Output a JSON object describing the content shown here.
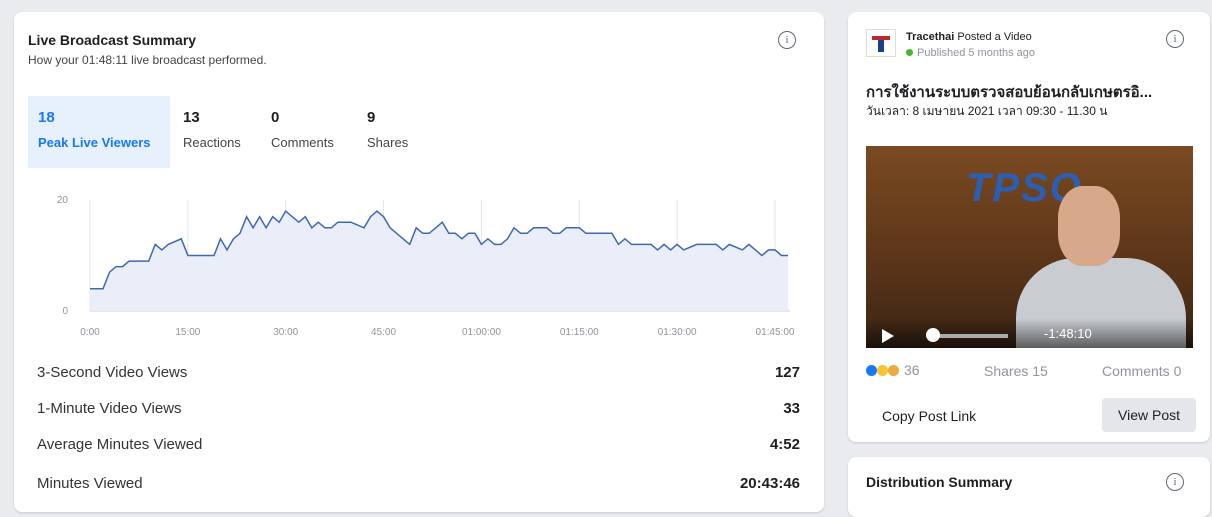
{
  "summary": {
    "title": "Live Broadcast Summary",
    "subtitle": "How your 01:48:11 live broadcast performed.",
    "tabs": [
      {
        "value": 18,
        "label": "Peak Live Viewers"
      },
      {
        "value": 13,
        "label": "Reactions"
      },
      {
        "value": 0,
        "label": "Comments"
      },
      {
        "value": 9,
        "label": "Shares"
      }
    ],
    "rows": [
      {
        "label": "3-Second Video Views",
        "value": 127
      },
      {
        "label": "1-Minute Video Views",
        "value": 33
      },
      {
        "label": "Average Minutes Viewed",
        "value": "4:52"
      },
      {
        "label": "Minutes Viewed",
        "value": "20:43:46"
      }
    ]
  },
  "chart_data": {
    "type": "line",
    "color": "#4267b2",
    "fill": "#e9eef8",
    "x": [
      0,
      2,
      3,
      4,
      5,
      6,
      9,
      10,
      11,
      12,
      14,
      15,
      19,
      20,
      21,
      22,
      23,
      24,
      25,
      26,
      27,
      28,
      29,
      30,
      31,
      32,
      33,
      34,
      35,
      36,
      37,
      38,
      40,
      42,
      43,
      44,
      45,
      46,
      47,
      48,
      49,
      50,
      51,
      52,
      53,
      54,
      55,
      56,
      57,
      58,
      59,
      60,
      61,
      62,
      63,
      64,
      65,
      66,
      67,
      68,
      70,
      71,
      72,
      73,
      75,
      76,
      80,
      81,
      82,
      83,
      86,
      87,
      88,
      89,
      90,
      91,
      93,
      96,
      97,
      98,
      100,
      101,
      102,
      103,
      104,
      105,
      106,
      107
    ],
    "values": [
      4,
      4,
      7,
      8,
      8,
      9,
      9,
      12,
      11,
      12,
      13,
      10,
      10,
      13,
      11,
      13,
      14,
      17,
      15,
      17,
      15,
      17,
      16,
      18,
      17,
      16,
      17,
      15,
      16,
      15,
      15,
      16,
      16,
      15,
      17,
      18,
      17,
      15,
      14,
      13,
      12,
      15,
      14,
      14,
      15,
      16,
      14,
      14,
      13,
      14,
      14,
      12,
      13,
      12,
      12,
      13,
      15,
      14,
      14,
      15,
      15,
      14,
      14,
      15,
      15,
      14,
      14,
      12,
      13,
      12,
      12,
      11,
      12,
      11,
      12,
      11,
      12,
      12,
      11,
      12,
      11,
      12,
      11,
      10,
      11,
      11,
      10,
      10
    ],
    "xlim": [
      0,
      107.3
    ],
    "ylim": [
      0,
      20
    ],
    "xticks": [
      {
        "value": 0,
        "label": "0:00"
      },
      {
        "value": 15,
        "label": "15:00"
      },
      {
        "value": 30,
        "label": "30:00"
      },
      {
        "value": 45,
        "label": "45:00"
      },
      {
        "value": 60,
        "label": "01:00:00"
      },
      {
        "value": 75,
        "label": "01:15:00"
      },
      {
        "value": 90,
        "label": "01:30:00"
      },
      {
        "value": 105,
        "label": "01:45:00"
      }
    ],
    "yticks": [
      0,
      20
    ],
    "grid": true
  },
  "post": {
    "author": "Tracethai",
    "action": "Posted a Video",
    "published": "Published 5 months ago",
    "title": "การใช้งานระบบตรวจสอบย้อนกลับเกษตรอิ...",
    "date": "วันเวลา: 8 เมษายน 2021 เวลา 09:30 - 11.30 น",
    "video_logo": "TPSO",
    "video_time": "-1:48:10",
    "reactions": "36",
    "shares": "Shares 15",
    "comments": "Comments 0",
    "copy_link": "Copy Post Link",
    "view_post": "View Post"
  },
  "distribution": {
    "title": "Distribution Summary"
  }
}
